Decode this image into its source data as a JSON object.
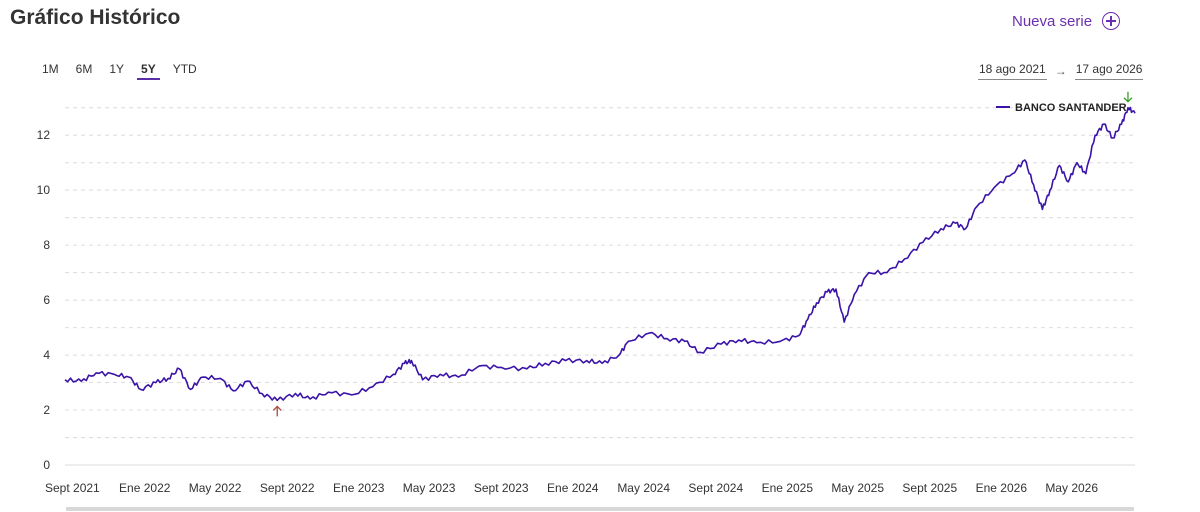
{
  "header": {
    "title": "Gráfico Histórico",
    "new_series_label": "Nueva serie"
  },
  "ranges": [
    {
      "label": "1M",
      "active": false
    },
    {
      "label": "6M",
      "active": false
    },
    {
      "label": "1Y",
      "active": false
    },
    {
      "label": "5Y",
      "active": true
    },
    {
      "label": "YTD",
      "active": false
    }
  ],
  "date_range": {
    "start": "18 ago 2021",
    "separator": "→",
    "end": "17 ago 2026"
  },
  "colors": {
    "series": "#3a13a8",
    "accent": "#6a2fb0",
    "min_marker": "#b04a3a",
    "max_marker": "#3aa02a",
    "grid": "#dcdcdc"
  },
  "chart_data": {
    "type": "line",
    "ylim": [
      0,
      13.5
    ],
    "yticks": [
      0,
      2,
      4,
      6,
      8,
      10,
      12
    ],
    "xlim": [
      "2021-08-18",
      "2026-08-17"
    ],
    "xticks": [
      {
        "date": "2021-08-18",
        "label": "Sept 2021"
      },
      {
        "date": "2022-01-01",
        "label": "Ene 2022"
      },
      {
        "date": "2022-05-01",
        "label": "May 2022"
      },
      {
        "date": "2022-09-01",
        "label": "Sept 2022"
      },
      {
        "date": "2023-01-01",
        "label": "Ene 2023"
      },
      {
        "date": "2023-05-01",
        "label": "May 2023"
      },
      {
        "date": "2023-09-01",
        "label": "Sept 2023"
      },
      {
        "date": "2024-01-01",
        "label": "Ene 2024"
      },
      {
        "date": "2024-05-01",
        "label": "May 2024"
      },
      {
        "date": "2024-09-01",
        "label": "Sept 2024"
      },
      {
        "date": "2025-01-01",
        "label": "Ene 2025"
      },
      {
        "date": "2025-05-01",
        "label": "May 2025"
      },
      {
        "date": "2025-09-01",
        "label": "Sept 2025"
      },
      {
        "date": "2026-01-01",
        "label": "Ene 2026"
      },
      {
        "date": "2026-05-01",
        "label": "May 2026"
      }
    ],
    "legend": {
      "position": "top-right"
    },
    "grid": true,
    "series": [
      {
        "name": "BANCO SANTANDER",
        "points": [
          [
            "2021-08-18",
            3.1
          ],
          [
            "2021-09-15",
            3.05
          ],
          [
            "2021-10-10",
            3.35
          ],
          [
            "2021-11-10",
            3.3
          ],
          [
            "2021-12-05",
            3.2
          ],
          [
            "2021-12-25",
            2.75
          ],
          [
            "2022-01-20",
            3.0
          ],
          [
            "2022-02-10",
            3.15
          ],
          [
            "2022-03-01",
            3.5
          ],
          [
            "2022-03-20",
            2.75
          ],
          [
            "2022-04-10",
            3.2
          ],
          [
            "2022-05-10",
            3.15
          ],
          [
            "2022-06-01",
            2.7
          ],
          [
            "2022-06-25",
            3.05
          ],
          [
            "2022-07-20",
            2.6
          ],
          [
            "2022-08-15",
            2.35
          ],
          [
            "2022-09-15",
            2.6
          ],
          [
            "2022-10-10",
            2.4
          ],
          [
            "2022-11-10",
            2.65
          ],
          [
            "2022-12-20",
            2.55
          ],
          [
            "2023-01-25",
            2.85
          ],
          [
            "2023-03-01",
            3.3
          ],
          [
            "2023-03-20",
            3.7
          ],
          [
            "2023-04-01",
            3.8
          ],
          [
            "2023-04-20",
            3.1
          ],
          [
            "2023-05-20",
            3.3
          ],
          [
            "2023-06-20",
            3.2
          ],
          [
            "2023-07-25",
            3.6
          ],
          [
            "2023-09-01",
            3.55
          ],
          [
            "2023-10-15",
            3.5
          ],
          [
            "2023-11-15",
            3.7
          ],
          [
            "2023-12-20",
            3.8
          ],
          [
            "2024-01-25",
            3.8
          ],
          [
            "2024-02-20",
            3.7
          ],
          [
            "2024-03-20",
            4.0
          ],
          [
            "2024-04-05",
            4.5
          ],
          [
            "2024-05-10",
            4.8
          ],
          [
            "2024-06-10",
            4.6
          ],
          [
            "2024-07-10",
            4.5
          ],
          [
            "2024-08-05",
            4.1
          ],
          [
            "2024-09-10",
            4.4
          ],
          [
            "2024-10-10",
            4.55
          ],
          [
            "2024-11-10",
            4.45
          ],
          [
            "2024-12-20",
            4.5
          ],
          [
            "2025-01-20",
            4.7
          ],
          [
            "2025-02-05",
            5.3
          ],
          [
            "2025-02-20",
            5.9
          ],
          [
            "2025-03-10",
            6.3
          ],
          [
            "2025-03-25",
            6.4
          ],
          [
            "2025-04-08",
            5.2
          ],
          [
            "2025-04-25",
            6.2
          ],
          [
            "2025-05-20",
            7.0
          ],
          [
            "2025-06-20",
            7.0
          ],
          [
            "2025-07-20",
            7.5
          ],
          [
            "2025-08-20",
            8.1
          ],
          [
            "2025-09-20",
            8.6
          ],
          [
            "2025-10-15",
            8.8
          ],
          [
            "2025-11-01",
            8.6
          ],
          [
            "2025-11-20",
            9.4
          ],
          [
            "2025-12-20",
            10.1
          ],
          [
            "2026-01-20",
            10.6
          ],
          [
            "2026-02-10",
            11.1
          ],
          [
            "2026-02-25",
            10.2
          ],
          [
            "2026-03-12",
            9.3
          ],
          [
            "2026-03-25",
            10.0
          ],
          [
            "2026-04-10",
            10.9
          ],
          [
            "2026-04-25",
            10.3
          ],
          [
            "2026-05-10",
            11.0
          ],
          [
            "2026-05-25",
            10.6
          ],
          [
            "2026-06-10",
            12.0
          ],
          [
            "2026-06-25",
            12.4
          ],
          [
            "2026-07-10",
            11.9
          ],
          [
            "2026-07-25",
            12.4
          ],
          [
            "2026-08-05",
            13.0
          ],
          [
            "2026-08-17",
            12.8
          ]
        ]
      }
    ],
    "markers": [
      {
        "type": "min",
        "date": "2022-08-15",
        "value": 2.35
      },
      {
        "type": "max",
        "date": "2026-08-05",
        "value": 13.0
      }
    ]
  }
}
